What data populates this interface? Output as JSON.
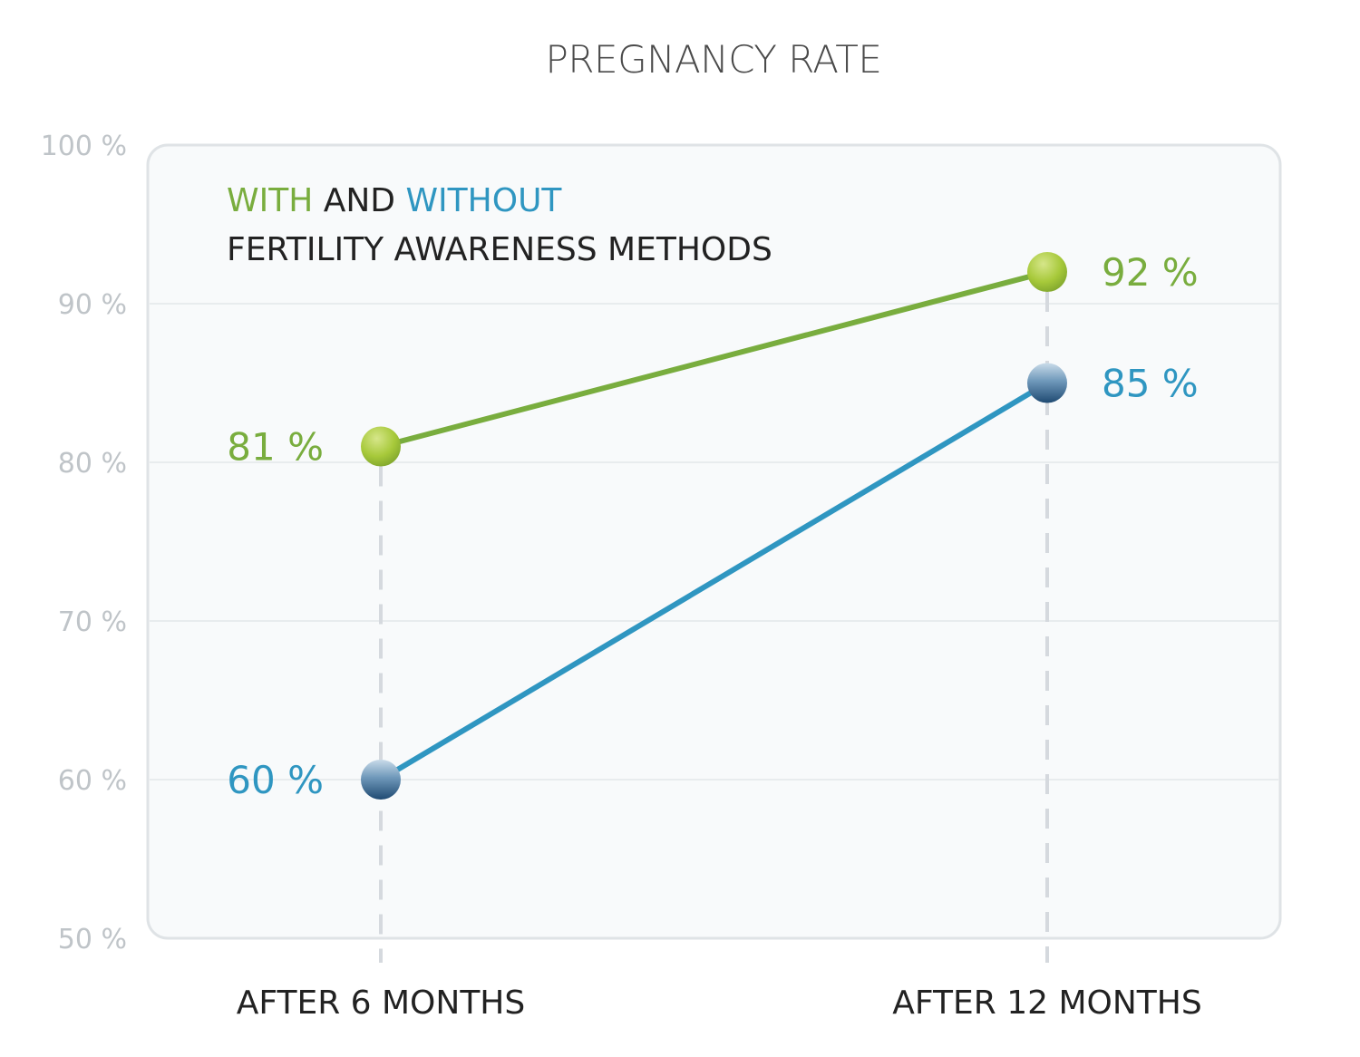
{
  "chart_data": {
    "type": "line",
    "title": "PREGNANCY RATE",
    "categories": [
      "AFTER 6 MONTHS",
      "AFTER 12 MONTHS"
    ],
    "series": [
      {
        "name": "WITH",
        "values": [
          81,
          92
        ],
        "labels": [
          "81 %",
          "92 %"
        ],
        "color": "#79ad3e",
        "marker_color": "#a7c93a"
      },
      {
        "name": "WITHOUT",
        "values": [
          60,
          85
        ],
        "labels": [
          "60 %",
          "85 %"
        ],
        "color": "#2f96c1",
        "marker_color": "#2f5f86"
      }
    ],
    "legend": {
      "line1": [
        {
          "text": "WITH",
          "color": "#79ad3e"
        },
        {
          "text": " AND ",
          "color": "#222222"
        },
        {
          "text": "WITHOUT",
          "color": "#2f96c1"
        }
      ],
      "line2": "FERTILITY AWARENESS METHODS",
      "position": "top-left"
    },
    "yticks": [
      "50 %",
      "60 %",
      "70 %",
      "80 %",
      "90 %",
      "100 %"
    ],
    "ytick_values": [
      50,
      60,
      70,
      80,
      90,
      100
    ],
    "ylim": [
      50,
      100
    ],
    "grid": true,
    "panel_background": "#f8fafb",
    "gridline_color": "#e3e7ea"
  }
}
